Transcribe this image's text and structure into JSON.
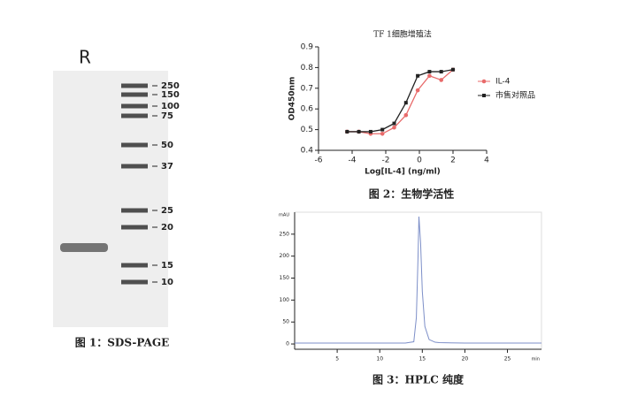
{
  "gel": {
    "lane_label": "R",
    "markers": [
      250,
      150,
      100,
      75,
      50,
      37,
      25,
      20,
      15,
      10
    ],
    "caption": "图 1：SDS-PAGE"
  },
  "chart_data": [
    {
      "type": "line",
      "title": "TF 1细胞增殖法",
      "x_label": "Log[IL-4] (ng/ml)",
      "y_label": "OD450nm",
      "x": [
        -4.3,
        -3.6,
        -2.9,
        -2.2,
        -1.5,
        -0.8,
        -0.1,
        0.6,
        1.3,
        2.0
      ],
      "series": [
        {
          "name": "IL-4",
          "color": "#e86a6a",
          "values": [
            0.49,
            0.49,
            0.48,
            0.48,
            0.51,
            0.57,
            0.69,
            0.76,
            0.74,
            0.79
          ]
        },
        {
          "name": "市售对照品",
          "color": "#222222",
          "values": [
            0.49,
            0.49,
            0.49,
            0.5,
            0.53,
            0.63,
            0.76,
            0.78,
            0.78,
            0.79
          ]
        }
      ],
      "xlim": [
        -6,
        4
      ],
      "xticks": [
        -6,
        -4,
        -2,
        0,
        2,
        4
      ],
      "ylim": [
        0.4,
        0.9
      ],
      "yticks": [
        0.4,
        0.5,
        0.6,
        0.7,
        0.8,
        0.9
      ],
      "markers": true,
      "caption": "图 2：生物学活性"
    },
    {
      "type": "line",
      "y_label": "mAU",
      "x_label": "min",
      "x": [
        0,
        5,
        10,
        13,
        14,
        14.3,
        14.5,
        14.6,
        14.8,
        15,
        15.3,
        15.8,
        16.5,
        17,
        20,
        25,
        29
      ],
      "series": [
        {
          "color": "#7d8fc8",
          "values": [
            2,
            2,
            2,
            2,
            5,
            60,
            200,
            290,
            230,
            120,
            40,
            10,
            4,
            3,
            2,
            2,
            2
          ]
        }
      ],
      "xlim": [
        0,
        29
      ],
      "xticks": [
        5,
        10,
        15,
        20,
        25
      ],
      "ylim": [
        -12,
        300
      ],
      "yticks": [
        0,
        50,
        100,
        150,
        200,
        250
      ],
      "markers": false,
      "caption": "图 3：HPLC 纯度"
    }
  ]
}
